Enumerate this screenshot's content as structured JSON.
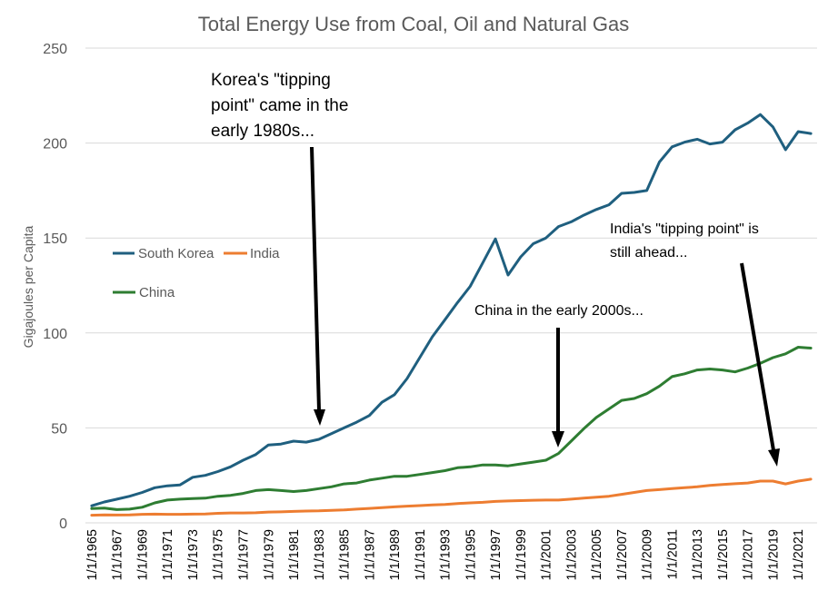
{
  "chart_data": {
    "type": "line",
    "title": "Total Energy Use from Coal, Oil and Natural Gas",
    "ylabel": "Gigajoules per Capita",
    "xlabel": "",
    "ylim": [
      0,
      250
    ],
    "yticks": [
      0,
      50,
      100,
      150,
      200,
      250
    ],
    "grid": true,
    "legend_placement": "left-middle",
    "x": [
      "1/1/1965",
      "1/1/1966",
      "1/1/1967",
      "1/1/1968",
      "1/1/1969",
      "1/1/1970",
      "1/1/1971",
      "1/1/1972",
      "1/1/1973",
      "1/1/1974",
      "1/1/1975",
      "1/1/1976",
      "1/1/1977",
      "1/1/1978",
      "1/1/1979",
      "1/1/1980",
      "1/1/1981",
      "1/1/1982",
      "1/1/1983",
      "1/1/1984",
      "1/1/1985",
      "1/1/1986",
      "1/1/1987",
      "1/1/1988",
      "1/1/1989",
      "1/1/1990",
      "1/1/1991",
      "1/1/1992",
      "1/1/1993",
      "1/1/1994",
      "1/1/1995",
      "1/1/1996",
      "1/1/1997",
      "1/1/1998",
      "1/1/1999",
      "1/1/2000",
      "1/1/2001",
      "1/1/2002",
      "1/1/2003",
      "1/1/2004",
      "1/1/2005",
      "1/1/2006",
      "1/1/2007",
      "1/1/2008",
      "1/1/2009",
      "1/1/2010",
      "1/1/2011",
      "1/1/2012",
      "1/1/2013",
      "1/1/2014",
      "1/1/2015",
      "1/1/2016",
      "1/1/2017",
      "1/1/2018",
      "1/1/2019",
      "1/1/2020",
      "1/1/2021",
      "1/1/2022"
    ],
    "xtick_labels": [
      "1/1/1965",
      "1/1/1967",
      "1/1/1969",
      "1/1/1971",
      "1/1/1973",
      "1/1/1975",
      "1/1/1977",
      "1/1/1979",
      "1/1/1981",
      "1/1/1983",
      "1/1/1985",
      "1/1/1987",
      "1/1/1989",
      "1/1/1991",
      "1/1/1993",
      "1/1/1995",
      "1/1/1997",
      "1/1/1999",
      "1/1/2001",
      "1/1/2003",
      "1/1/2005",
      "1/1/2007",
      "1/1/2009",
      "1/1/2011",
      "1/1/2013",
      "1/1/2015",
      "1/1/2017",
      "1/1/2019",
      "1/1/2021"
    ],
    "series": [
      {
        "name": "South Korea",
        "color": "#1f5f7f",
        "values": [
          9,
          11,
          12.5,
          14,
          16,
          18.5,
          19.5,
          20,
          24,
          25,
          27,
          29.5,
          33,
          36,
          41,
          41.5,
          43,
          42.5,
          44,
          47,
          50,
          53,
          56.5,
          63.5,
          67.5,
          76,
          87,
          98,
          107,
          116,
          124.5,
          137,
          149.5,
          130.5,
          140,
          147,
          150,
          156,
          158.5,
          162,
          165,
          167.5,
          173.5,
          174,
          175,
          190,
          198,
          200.5,
          202,
          199.5,
          200.5,
          207,
          210.5,
          215,
          208.5,
          196.5,
          206,
          205
        ]
      },
      {
        "name": "India",
        "color": "#ed7d31",
        "values": [
          4,
          4.2,
          4.1,
          4.2,
          4.5,
          4.6,
          4.5,
          4.5,
          4.6,
          4.7,
          5,
          5.2,
          5.2,
          5.3,
          5.7,
          5.8,
          6,
          6.2,
          6.3,
          6.6,
          6.8,
          7.2,
          7.6,
          8,
          8.4,
          8.8,
          9.1,
          9.4,
          9.7,
          10.2,
          10.5,
          10.8,
          11.3,
          11.5,
          11.7,
          11.9,
          12,
          12,
          12.5,
          13,
          13.5,
          14,
          15,
          16,
          17,
          17.5,
          18,
          18.5,
          19,
          19.7,
          20.2,
          20.6,
          21,
          22,
          22,
          20.5,
          22,
          23
        ]
      },
      {
        "name": "China",
        "color": "#2e7d32",
        "values": [
          7.5,
          7.8,
          7,
          7.2,
          8.2,
          10.5,
          12,
          12.5,
          12.8,
          13,
          14,
          14.5,
          15.5,
          17,
          17.5,
          17,
          16.5,
          17,
          18,
          19,
          20.5,
          21,
          22.5,
          23.5,
          24.5,
          24.5,
          25.5,
          26.5,
          27.5,
          29,
          29.5,
          30.5,
          30.5,
          30,
          31,
          32,
          33,
          36.5,
          43,
          49.5,
          55.5,
          60,
          64.5,
          65.5,
          68,
          72,
          77,
          78.5,
          80.5,
          81,
          80.5,
          79.5,
          81.5,
          84,
          87,
          89,
          92.5,
          92
        ]
      }
    ],
    "annotations": [
      {
        "id": "korea",
        "lines": [
          "Korea's \"tipping",
          "point\" came in the",
          "early 1980s..."
        ]
      },
      {
        "id": "china",
        "lines": [
          "China in the early 2000s..."
        ]
      },
      {
        "id": "india",
        "lines": [
          "India's \"tipping point\" is",
          "still ahead..."
        ]
      }
    ]
  }
}
